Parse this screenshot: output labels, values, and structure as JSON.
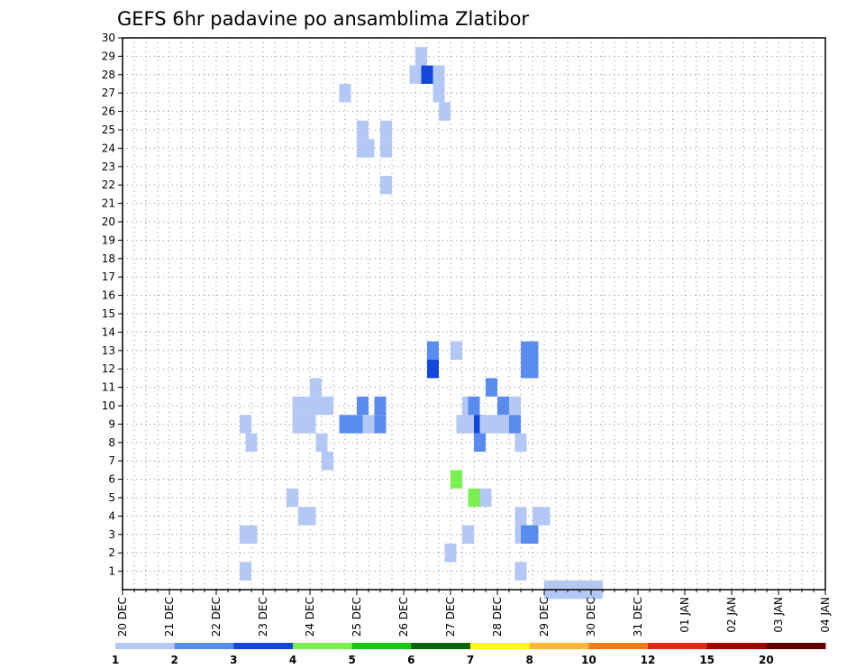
{
  "chart_data": {
    "type": "heatmap",
    "title": "GEFS 6hr padavine po ansamblima Zlatibor",
    "xlabel": "",
    "ylabel": "",
    "x_tick_labels": [
      "20 DEC",
      "21 DEC",
      "22 DEC",
      "23 DEC",
      "24 DEC",
      "25 DEC",
      "26 DEC",
      "27 DEC",
      "28 DEC",
      "29 DEC",
      "30 DEC",
      "31 DEC",
      "01 JAN",
      "02 JAN",
      "03 JAN",
      "04 JAN"
    ],
    "y_tick_labels": [
      "1",
      "2",
      "3",
      "4",
      "5",
      "6",
      "7",
      "8",
      "9",
      "10",
      "11",
      "12",
      "13",
      "14",
      "15",
      "16",
      "17",
      "18",
      "19",
      "20",
      "21",
      "22",
      "23",
      "24",
      "25",
      "26",
      "27",
      "28",
      "29",
      "30"
    ],
    "x_steps_per_day": 4,
    "x_range_steps": [
      0,
      60
    ],
    "ylim": [
      1,
      30
    ],
    "grid": true,
    "legend": {
      "position": "bottom",
      "bounds": [
        "1",
        "2",
        "3",
        "4",
        "5",
        "6",
        "7",
        "8",
        "10",
        "12",
        "15",
        "20"
      ],
      "colors": [
        "#b4c8f5",
        "#5a8cf0",
        "#1446dc",
        "#78f050",
        "#14c814",
        "#0a640a",
        "#ffff00",
        "#ffb432",
        "#ff7814",
        "#e12814",
        "#a00000",
        "#640000"
      ]
    },
    "cells": [
      [
        21,
        1,
        0
      ],
      [
        21,
        3,
        0
      ],
      [
        22,
        3,
        0
      ],
      [
        22,
        8,
        0
      ],
      [
        21,
        9,
        0
      ],
      [
        29,
        5,
        0
      ],
      [
        30,
        9,
        0
      ],
      [
        30,
        10,
        0
      ],
      [
        31,
        4,
        0
      ],
      [
        31,
        10,
        0
      ],
      [
        32,
        4,
        0
      ],
      [
        32,
        9,
        0
      ],
      [
        33,
        10,
        0
      ],
      [
        33,
        11,
        0
      ],
      [
        34,
        8,
        0
      ],
      [
        35,
        7,
        0
      ],
      [
        35,
        10,
        0
      ],
      [
        38,
        9,
        1
      ],
      [
        38,
        27,
        0
      ],
      [
        40,
        9,
        1
      ],
      [
        41,
        10,
        1
      ],
      [
        41,
        24,
        0
      ],
      [
        41,
        25,
        0
      ],
      [
        42,
        9,
        0
      ],
      [
        42,
        24,
        0
      ],
      [
        44,
        9,
        1
      ],
      [
        44,
        10,
        1
      ],
      [
        45,
        22,
        0
      ],
      [
        45,
        24,
        0
      ],
      [
        45,
        25,
        0
      ],
      [
        50,
        28,
        0
      ],
      [
        51,
        29,
        0
      ],
      [
        52,
        28,
        2
      ],
      [
        53,
        12,
        2
      ],
      [
        53,
        13,
        1
      ],
      [
        54,
        27,
        0
      ],
      [
        54,
        28,
        0
      ],
      [
        55,
        26,
        0
      ],
      [
        56,
        2,
        0
      ],
      [
        57,
        6,
        3
      ],
      [
        57,
        13,
        0
      ],
      [
        58,
        9,
        0
      ],
      [
        59,
        3,
        0
      ],
      [
        59,
        9,
        0
      ],
      [
        59,
        10,
        0
      ],
      [
        60,
        5,
        3
      ],
      [
        60,
        10,
        1
      ],
      [
        61,
        8,
        1
      ],
      [
        61,
        9,
        2
      ],
      [
        62,
        5,
        0
      ],
      [
        62,
        9,
        0
      ],
      [
        63,
        11,
        1
      ],
      [
        64,
        9,
        0
      ],
      [
        65,
        10,
        1
      ],
      [
        66,
        9,
        0
      ],
      [
        67,
        9,
        1
      ],
      [
        67,
        10,
        0
      ],
      [
        68,
        1,
        0
      ],
      [
        68,
        3,
        0
      ],
      [
        68,
        4,
        0
      ],
      [
        68,
        8,
        0
      ],
      [
        69,
        3,
        1
      ],
      [
        69,
        12,
        1
      ],
      [
        69,
        13,
        1
      ],
      [
        70,
        3,
        1
      ],
      [
        70,
        12,
        1
      ],
      [
        70,
        13,
        1
      ],
      [
        71,
        4,
        0
      ],
      [
        72,
        4,
        0
      ],
      [
        73,
        0,
        0
      ],
      [
        74,
        0,
        0
      ],
      [
        75,
        0,
        0
      ],
      [
        76,
        0,
        0
      ],
      [
        77,
        0,
        0
      ],
      [
        78,
        0,
        0
      ],
      [
        79,
        0,
        0
      ],
      [
        80,
        0,
        0
      ],
      [
        81,
        0,
        0
      ]
    ]
  }
}
